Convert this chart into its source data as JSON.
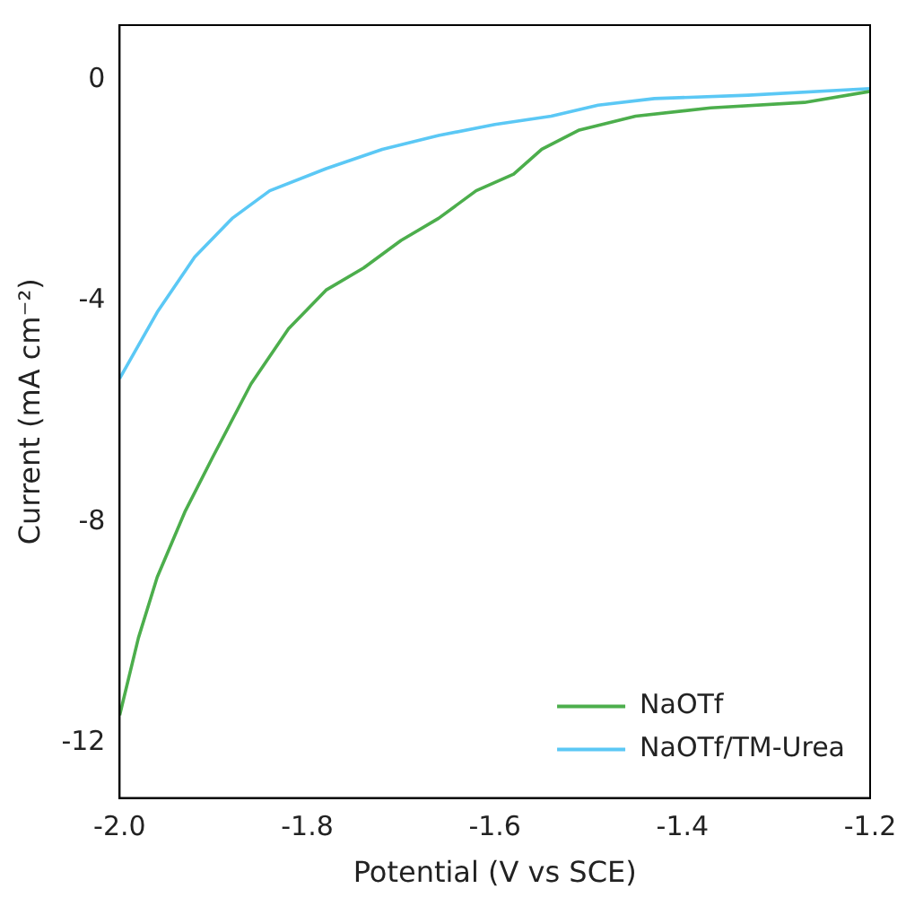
{
  "chart_data": {
    "type": "line",
    "xlabel": "Potential (V vs SCE)",
    "ylabel": "Current (mA cm⁻²)",
    "xlim": [
      -2.0,
      -1.2
    ],
    "xticks": [
      {
        "value": -2.0,
        "label": "-2.0"
      },
      {
        "value": -1.8,
        "label": "-1.8"
      },
      {
        "value": -1.6,
        "label": "-1.6"
      },
      {
        "value": -1.4,
        "label": "-1.4"
      },
      {
        "value": -1.2,
        "label": "-1.2"
      }
    ],
    "ylim": [
      -13,
      1
    ],
    "yticks": [
      0,
      -4,
      -8,
      -12
    ],
    "grid": false,
    "legend": "bottom right",
    "marker": "none",
    "line_style": "solid",
    "series": [
      {
        "name": "NaOTf",
        "color": "#4cae4c",
        "x": [
          -2.0,
          -1.98,
          -1.96,
          -1.93,
          -1.9,
          -1.86,
          -1.82,
          -1.78,
          -1.74,
          -1.7,
          -1.66,
          -1.62,
          -1.58,
          -1.55,
          -1.51,
          -1.45,
          -1.37,
          -1.27,
          -1.2
        ],
        "values": [
          -11.5,
          -10.1,
          -9.0,
          -7.8,
          -6.8,
          -5.5,
          -4.5,
          -3.8,
          -3.4,
          -2.9,
          -2.5,
          -2.0,
          -1.7,
          -1.25,
          -0.9,
          -0.65,
          -0.5,
          -0.4,
          -0.2
        ]
      },
      {
        "name": "NaOTf/TM-Urea",
        "color": "#5bc8f5",
        "x": [
          -2.0,
          -1.96,
          -1.92,
          -1.88,
          -1.84,
          -1.78,
          -1.72,
          -1.66,
          -1.6,
          -1.54,
          -1.49,
          -1.43,
          -1.33,
          -1.2
        ],
        "values": [
          -5.4,
          -4.2,
          -3.2,
          -2.5,
          -2.0,
          -1.6,
          -1.25,
          -1.0,
          -0.8,
          -0.65,
          -0.45,
          -0.33,
          -0.27,
          -0.15
        ]
      }
    ]
  }
}
